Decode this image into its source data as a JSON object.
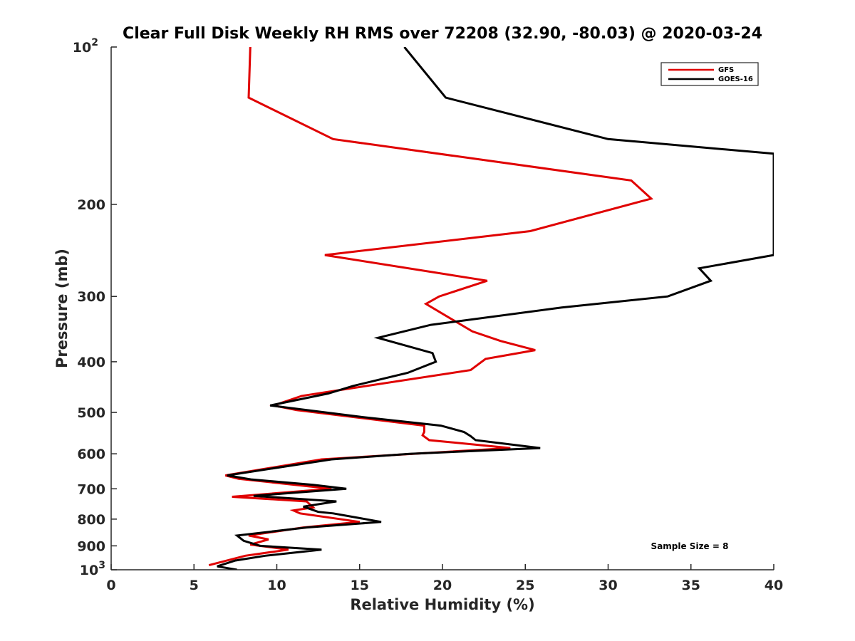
{
  "chart_data": {
    "type": "line",
    "title": "Clear Full Disk Weekly RH RMS over 72208 (32.90, -80.03) @ 2020-03-24",
    "xlabel": "Relative Humidity (%)",
    "ylabel": "Pressure (mb)",
    "xlim": [
      0,
      40
    ],
    "ylim": [
      100,
      1000
    ],
    "y_scale": "log",
    "y_reversed": true,
    "x_ticks": [
      "0",
      "5",
      "10",
      "15",
      "20",
      "25",
      "30",
      "35",
      "40"
    ],
    "y_ticks": [
      "200",
      "300",
      "400",
      "500",
      "600",
      "700",
      "800",
      "900"
    ],
    "y_tick_values": [
      200,
      300,
      400,
      500,
      600,
      700,
      800,
      900
    ],
    "y_tick_top": {
      "base": "10",
      "exp": "2"
    },
    "y_tick_bottom": {
      "base": "10",
      "exp": "3"
    },
    "grid": false,
    "legend_position": "top-right",
    "annotation": "Sample Size = 8",
    "series": [
      {
        "name": "GFS",
        "color": "#e00000",
        "points": [
          [
            8.4,
            100
          ],
          [
            8.3,
            125
          ],
          [
            13.4,
            150
          ],
          [
            31.4,
            180
          ],
          [
            32.6,
            195
          ],
          [
            25.3,
            225
          ],
          [
            12.9,
            250
          ],
          [
            22.7,
            280
          ],
          [
            19.8,
            300
          ],
          [
            19.0,
            310
          ],
          [
            21.8,
            350
          ],
          [
            23.5,
            365
          ],
          [
            25.6,
            380
          ],
          [
            22.6,
            395
          ],
          [
            21.7,
            415
          ],
          [
            14.4,
            450
          ],
          [
            11.5,
            465
          ],
          [
            9.8,
            485
          ],
          [
            11.2,
            495
          ],
          [
            18.9,
            530
          ],
          [
            18.9,
            545
          ],
          [
            18.8,
            553
          ],
          [
            19.2,
            565
          ],
          [
            24.1,
            585
          ],
          [
            18.2,
            600
          ],
          [
            12.7,
            615
          ],
          [
            6.9,
            660
          ],
          [
            7.7,
            670
          ],
          [
            11.5,
            690
          ],
          [
            13.3,
            700
          ],
          [
            7.3,
            725
          ],
          [
            11.8,
            740
          ],
          [
            12.2,
            760
          ],
          [
            11.0,
            770
          ],
          [
            11.4,
            780
          ],
          [
            15.0,
            810
          ],
          [
            11.6,
            830
          ],
          [
            8.3,
            860
          ],
          [
            9.5,
            875
          ],
          [
            8.4,
            895
          ],
          [
            10.7,
            915
          ],
          [
            8.1,
            940
          ],
          [
            5.9,
            980
          ]
        ]
      },
      {
        "name": "GOES-16",
        "color": "#000000",
        "points": [
          [
            17.7,
            100
          ],
          [
            20.2,
            125
          ],
          [
            30.0,
            150
          ],
          [
            40.0,
            160
          ],
          [
            40.0,
            250
          ],
          [
            35.5,
            265
          ],
          [
            36.2,
            280
          ],
          [
            33.6,
            300
          ],
          [
            27.2,
            315
          ],
          [
            19.3,
            340
          ],
          [
            16.1,
            360
          ],
          [
            19.4,
            385
          ],
          [
            19.6,
            400
          ],
          [
            17.9,
            420
          ],
          [
            14.6,
            445
          ],
          [
            13.1,
            460
          ],
          [
            9.6,
            485
          ],
          [
            15.1,
            510
          ],
          [
            19.9,
            530
          ],
          [
            21.3,
            545
          ],
          [
            21.7,
            555
          ],
          [
            22.0,
            565
          ],
          [
            25.9,
            585
          ],
          [
            18.0,
            600
          ],
          [
            13.3,
            615
          ],
          [
            7.0,
            660
          ],
          [
            8.5,
            672
          ],
          [
            12.2,
            688
          ],
          [
            14.2,
            700
          ],
          [
            8.6,
            722
          ],
          [
            13.6,
            740
          ],
          [
            11.6,
            757
          ],
          [
            12.0,
            765
          ],
          [
            12.5,
            775
          ],
          [
            13.4,
            780
          ],
          [
            16.3,
            810
          ],
          [
            11.8,
            830
          ],
          [
            7.6,
            860
          ],
          [
            8.0,
            880
          ],
          [
            9.0,
            900
          ],
          [
            12.7,
            915
          ],
          [
            9.3,
            940
          ],
          [
            7.5,
            960
          ],
          [
            6.4,
            985
          ],
          [
            7.6,
            1000
          ]
        ]
      }
    ]
  }
}
